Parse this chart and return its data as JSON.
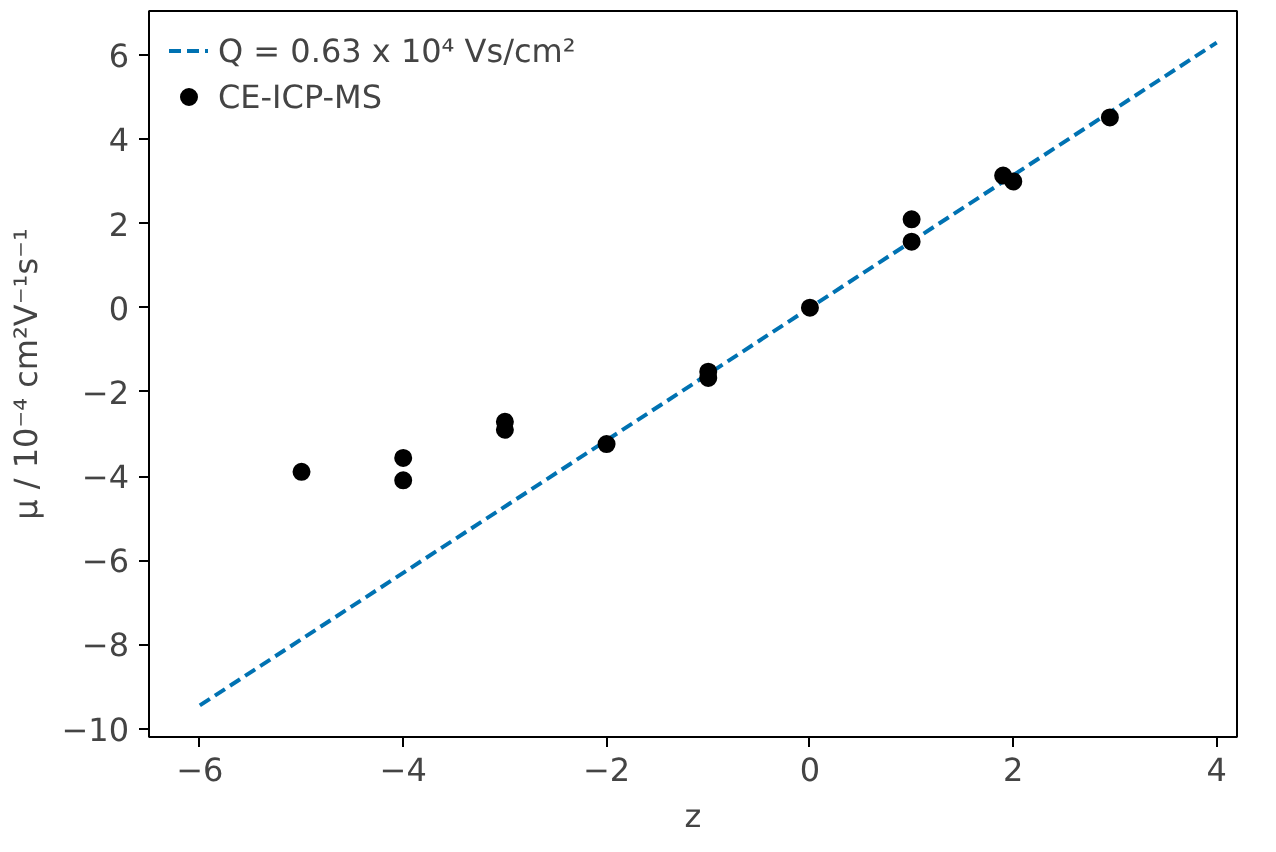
{
  "chart_data": {
    "type": "scatter",
    "xlabel": "z",
    "ylabel": "μ / 10⁻⁴ cm²V⁻¹s⁻¹",
    "xlim": [
      -6.5,
      4.2
    ],
    "ylim": [
      -10.2,
      7.05
    ],
    "xticks": [
      -6,
      -4,
      -2,
      0,
      2,
      4
    ],
    "yticks": [
      -10,
      -8,
      -6,
      -4,
      -2,
      0,
      2,
      4,
      6
    ],
    "grid": false,
    "legend": "top left",
    "series": [
      {
        "type": "line",
        "name": "Q = 0.63 x 10⁴ Vs/cm²",
        "color": "#0072b2",
        "line_style": "dashed",
        "marker": "none",
        "x": [
          -6,
          4
        ],
        "values": [
          -9.45,
          6.3
        ]
      },
      {
        "name": "CE-ICP-MS",
        "color": "#000000",
        "marker": "circle",
        "x": [
          -5,
          -4,
          -4,
          -3,
          -3,
          -2,
          -1,
          -1,
          0,
          1,
          1,
          1.9,
          2,
          2.95
        ],
        "values": [
          -3.9,
          -3.57,
          -4.1,
          -2.71,
          -2.9,
          -3.24,
          -1.52,
          -1.67,
          0,
          2.1,
          1.57,
          3.14,
          3.0,
          4.52
        ]
      }
    ]
  }
}
